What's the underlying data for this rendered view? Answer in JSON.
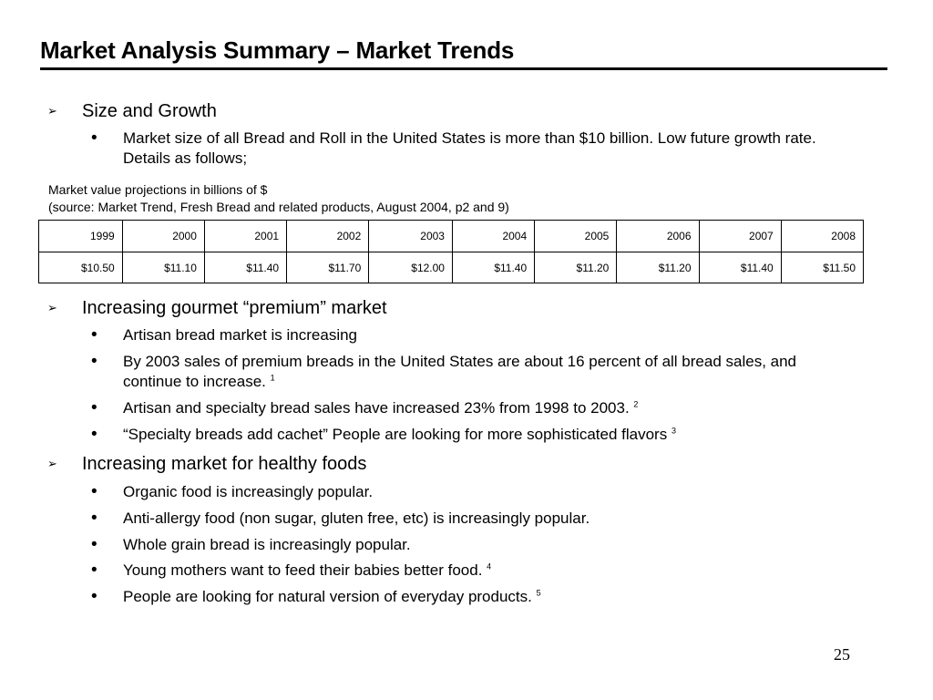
{
  "title": "Market Analysis Summary – Market Trends",
  "size_growth": {
    "heading": "Size and Growth",
    "bullet": "Market size of all Bread and Roll in the United States is more than $10 billion. Low future growth rate.  Details as follows;"
  },
  "note": {
    "line1": "Market value projections in billions of $",
    "line2": "(source: Market Trend, Fresh Bread and related products, August 2004, p2 and 9)"
  },
  "table": {
    "years": [
      "1999",
      "2000",
      "2001",
      "2002",
      "2003",
      "2004",
      "2005",
      "2006",
      "2007",
      "2008"
    ],
    "values": [
      "$10.50",
      "$11.10",
      "$11.40",
      "$11.70",
      "$12.00",
      "$11.40",
      "$11.20",
      "$11.20",
      "$11.40",
      "$11.50"
    ]
  },
  "premium": {
    "heading": "Increasing gourmet “premium” market",
    "bullets": [
      {
        "text": "Artisan bread market is increasing",
        "sup": ""
      },
      {
        "text": "By 2003 sales of premium breads in the United States are about 16 percent of all bread sales, and continue to increase. ",
        "sup": "1"
      },
      {
        "text": "Artisan and specialty bread sales have increased 23% from 1998 to 2003. ",
        "sup": "2"
      },
      {
        "text": "“Specialty breads add cachet” People are looking for more sophisticated flavors ",
        "sup": "3"
      }
    ]
  },
  "healthy": {
    "heading": "Increasing market for healthy foods",
    "bullets": [
      {
        "text": "Organic food is increasingly popular.",
        "sup": ""
      },
      {
        "text": "Anti-allergy food (non sugar, gluten free, etc) is increasingly popular.",
        "sup": ""
      },
      {
        "text": "Whole grain bread is increasingly popular.",
        "sup": ""
      },
      {
        "text": "Young mothers want to feed their babies better food. ",
        "sup": "4"
      },
      {
        "text": "People are looking for natural version of everyday products. ",
        "sup": "5"
      }
    ]
  },
  "bullet_glyphs": {
    "arrow": "➢",
    "dot": "•"
  },
  "page_number": "25"
}
